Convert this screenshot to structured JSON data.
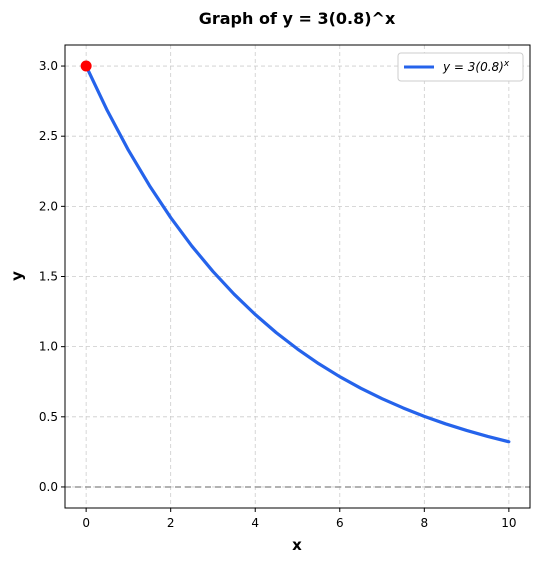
{
  "chart_data": {
    "type": "line",
    "title": "Graph of y = 3(0.8)^x",
    "xlabel": "x",
    "ylabel": "y",
    "xlim": [
      -0.5,
      10.5
    ],
    "ylim": [
      -0.15,
      3.15
    ],
    "xticks": [
      0,
      2,
      4,
      6,
      8,
      10
    ],
    "xtick_labels": [
      "0",
      "2",
      "4",
      "6",
      "8",
      "10"
    ],
    "yticks": [
      0.0,
      0.5,
      1.0,
      1.5,
      2.0,
      2.5,
      3.0
    ],
    "ytick_labels": [
      "0.0",
      "0.5",
      "1.0",
      "1.5",
      "2.0",
      "2.5",
      "3.0"
    ],
    "grid": true,
    "legend_position": "top-right",
    "series": [
      {
        "name": "y = 3(0.8)^x",
        "legend_main": "y = 3(0.8)",
        "legend_sup": "x",
        "color": "#2563eb",
        "x": [
          0,
          0.5,
          1,
          1.5,
          2,
          2.5,
          3,
          3.5,
          4,
          4.5,
          5,
          5.5,
          6,
          6.5,
          7,
          7.5,
          8,
          8.5,
          9,
          9.5,
          10
        ],
        "y": [
          3.0,
          2.683,
          2.4,
          2.147,
          1.92,
          1.717,
          1.536,
          1.374,
          1.229,
          1.099,
          0.983,
          0.879,
          0.786,
          0.703,
          0.629,
          0.563,
          0.503,
          0.45,
          0.403,
          0.36,
          0.322
        ]
      }
    ],
    "highlight_point": {
      "x": 0,
      "y": 3.0,
      "color": "#ff0000"
    },
    "reference_line": {
      "y": 0,
      "color": "#999999",
      "style": "dashed"
    }
  }
}
